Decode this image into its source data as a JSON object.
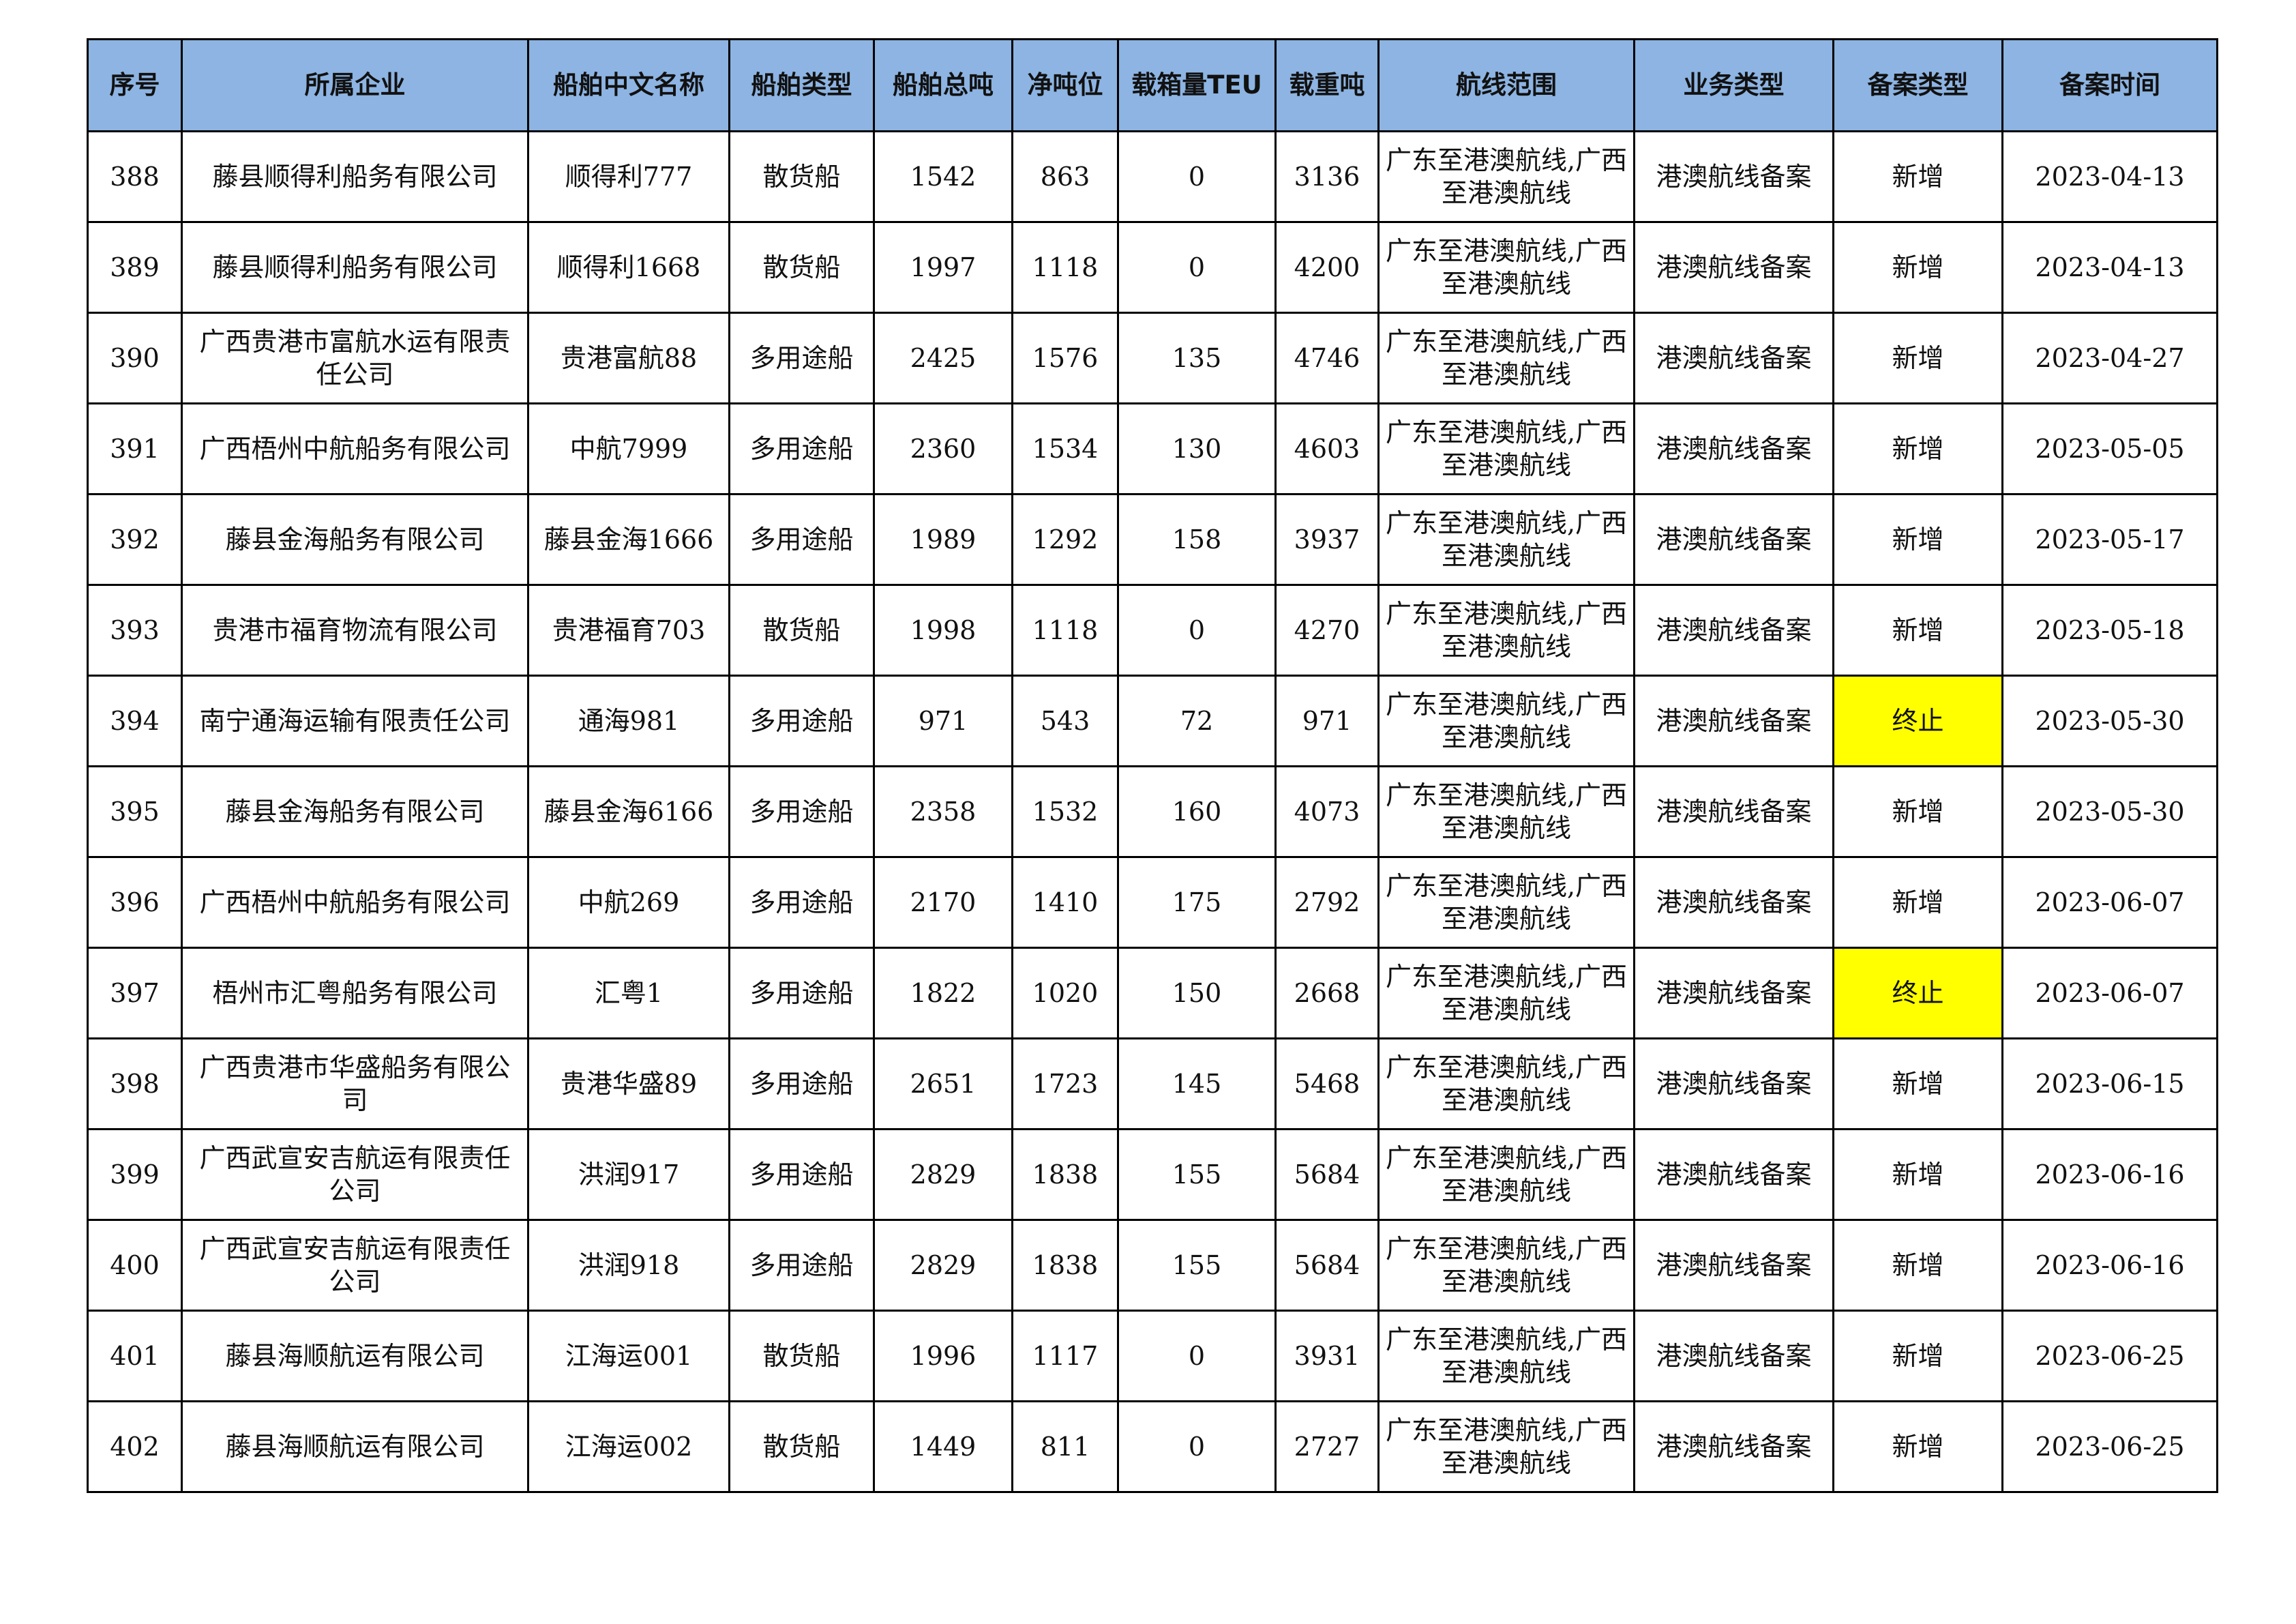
{
  "colors": {
    "header_bg": "#8DB4E2",
    "highlight": "#FFFF00"
  },
  "table": {
    "headers": [
      "序号",
      "所属企业",
      "船舶中文名称",
      "船舶类型",
      "船舶总吨",
      "净吨位",
      "载箱量TEU",
      "载重吨",
      "航线范围",
      "业务类型",
      "备案类型",
      "备案时间"
    ],
    "rows": [
      [
        "388",
        "藤县顺得利船务有限公司",
        "顺得利777",
        "散货船",
        "1542",
        "863",
        "0",
        "3136",
        "广东至港澳航线,广西至港澳航线",
        "港澳航线备案",
        "新增",
        "2023-04-13"
      ],
      [
        "389",
        "藤县顺得利船务有限公司",
        "顺得利1668",
        "散货船",
        "1997",
        "1118",
        "0",
        "4200",
        "广东至港澳航线,广西至港澳航线",
        "港澳航线备案",
        "新增",
        "2023-04-13"
      ],
      [
        "390",
        "广西贵港市富航水运有限责任公司",
        "贵港富航88",
        "多用途船",
        "2425",
        "1576",
        "135",
        "4746",
        "广东至港澳航线,广西至港澳航线",
        "港澳航线备案",
        "新增",
        "2023-04-27"
      ],
      [
        "391",
        "广西梧州中航船务有限公司",
        "中航7999",
        "多用途船",
        "2360",
        "1534",
        "130",
        "4603",
        "广东至港澳航线,广西至港澳航线",
        "港澳航线备案",
        "新增",
        "2023-05-05"
      ],
      [
        "392",
        "藤县金海船务有限公司",
        "藤县金海1666",
        "多用途船",
        "1989",
        "1292",
        "158",
        "3937",
        "广东至港澳航线,广西至港澳航线",
        "港澳航线备案",
        "新增",
        "2023-05-17"
      ],
      [
        "393",
        "贵港市福育物流有限公司",
        "贵港福育703",
        "散货船",
        "1998",
        "1118",
        "0",
        "4270",
        "广东至港澳航线,广西至港澳航线",
        "港澳航线备案",
        "新增",
        "2023-05-18"
      ],
      [
        "394",
        "南宁通海运输有限责任公司",
        "通海981",
        "多用途船",
        "971",
        "543",
        "72",
        "971",
        "广东至港澳航线,广西至港澳航线",
        "港澳航线备案",
        "终止",
        "2023-05-30"
      ],
      [
        "395",
        "藤县金海船务有限公司",
        "藤县金海6166",
        "多用途船",
        "2358",
        "1532",
        "160",
        "4073",
        "广东至港澳航线,广西至港澳航线",
        "港澳航线备案",
        "新增",
        "2023-05-30"
      ],
      [
        "396",
        "广西梧州中航船务有限公司",
        "中航269",
        "多用途船",
        "2170",
        "1410",
        "175",
        "2792",
        "广东至港澳航线,广西至港澳航线",
        "港澳航线备案",
        "新增",
        "2023-06-07"
      ],
      [
        "397",
        "梧州市汇粤船务有限公司",
        "汇粤1",
        "多用途船",
        "1822",
        "1020",
        "150",
        "2668",
        "广东至港澳航线,广西至港澳航线",
        "港澳航线备案",
        "终止",
        "2023-06-07"
      ],
      [
        "398",
        "广西贵港市华盛船务有限公司",
        "贵港华盛89",
        "多用途船",
        "2651",
        "1723",
        "145",
        "5468",
        "广东至港澳航线,广西至港澳航线",
        "港澳航线备案",
        "新增",
        "2023-06-15"
      ],
      [
        "399",
        "广西武宣安吉航运有限责任公司",
        "洪润917",
        "多用途船",
        "2829",
        "1838",
        "155",
        "5684",
        "广东至港澳航线,广西至港澳航线",
        "港澳航线备案",
        "新增",
        "2023-06-16"
      ],
      [
        "400",
        "广西武宣安吉航运有限责任公司",
        "洪润918",
        "多用途船",
        "2829",
        "1838",
        "155",
        "5684",
        "广东至港澳航线,广西至港澳航线",
        "港澳航线备案",
        "新增",
        "2023-06-16"
      ],
      [
        "401",
        "藤县海顺航运有限公司",
        "江海运001",
        "散货船",
        "1996",
        "1117",
        "0",
        "3931",
        "广东至港澳航线,广西至港澳航线",
        "港澳航线备案",
        "新增",
        "2023-06-25"
      ],
      [
        "402",
        "藤县海顺航运有限公司",
        "江海运002",
        "散货船",
        "1449",
        "811",
        "0",
        "2727",
        "广东至港澳航线,广西至港澳航线",
        "港澳航线备案",
        "新增",
        "2023-06-25"
      ]
    ]
  }
}
